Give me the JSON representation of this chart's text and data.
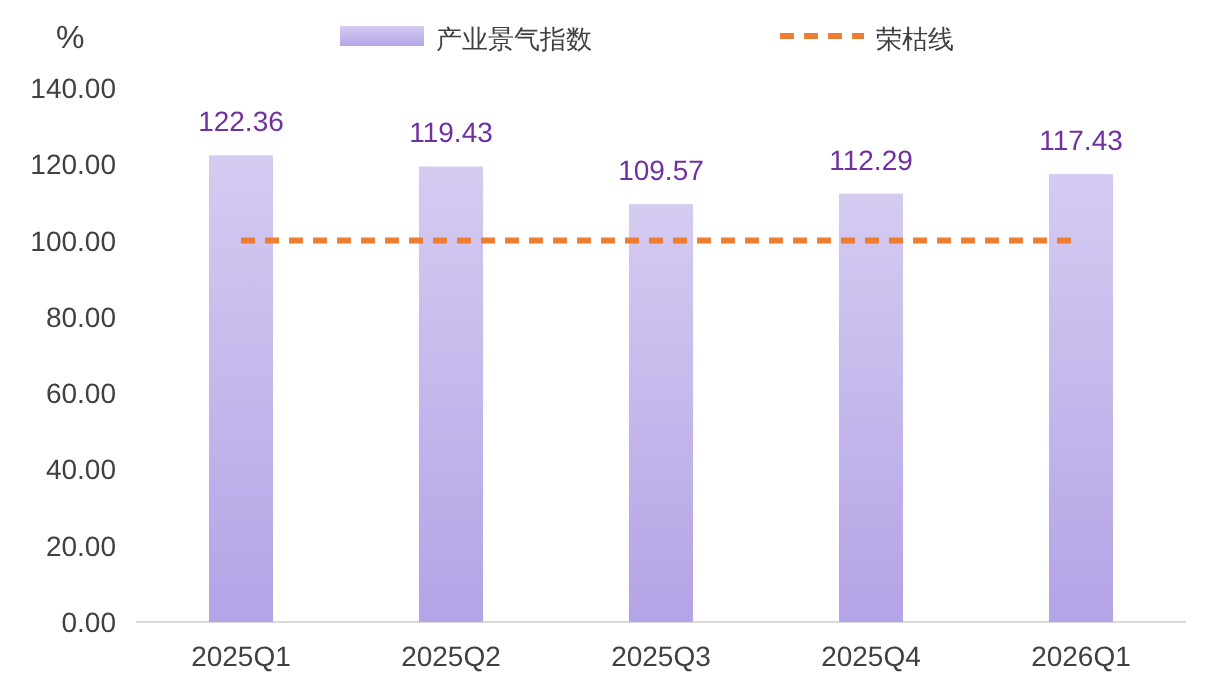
{
  "chart_data": {
    "type": "bar",
    "ylabel": "%",
    "categories": [
      "2025Q1",
      "2025Q2",
      "2025Q3",
      "2025Q4",
      "2026Q1"
    ],
    "series": [
      {
        "name": "产业景气指数",
        "color": "#b4a3e6",
        "values": [
          122.36,
          119.43,
          109.57,
          112.29,
          117.43
        ]
      },
      {
        "name": "荣枯线",
        "type": "line",
        "color": "#ed7d31",
        "line_style": "dashed",
        "values": [
          100,
          100,
          100,
          100,
          100
        ]
      }
    ],
    "ylim": [
      0,
      140
    ],
    "yticks": [
      {
        "value": 0,
        "label": "0.00"
      },
      {
        "value": 20,
        "label": "20.00"
      },
      {
        "value": 40,
        "label": "40.00"
      },
      {
        "value": 60,
        "label": "60.00"
      },
      {
        "value": 80,
        "label": "80.00"
      },
      {
        "value": 100,
        "label": "100.00"
      },
      {
        "value": 120,
        "label": "120.00"
      },
      {
        "value": 140,
        "label": "140.00"
      }
    ],
    "value_labels": [
      "122.36",
      "119.43",
      "109.57",
      "112.29",
      "117.43"
    ],
    "grid": false,
    "legend": "top"
  }
}
